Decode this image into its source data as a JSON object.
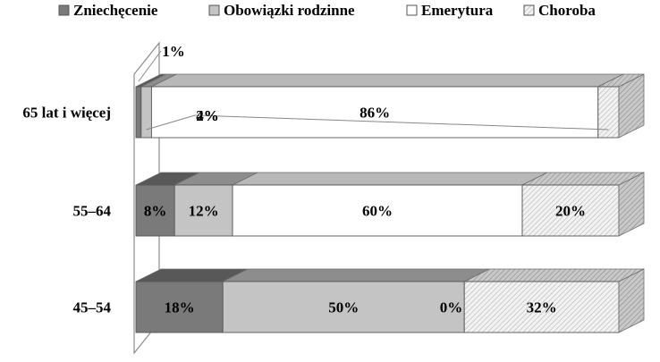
{
  "chart_data": {
    "type": "bar",
    "orientation": "horizontal",
    "stacked": "percent",
    "three_d": true,
    "legend_position": "top",
    "categories": [
      "65 lat i więcej",
      "55–64",
      "45–54"
    ],
    "series": [
      {
        "name": "Zniechęcenie",
        "values": [
          1,
          8,
          18
        ],
        "labels": [
          "1%",
          "8%",
          "18%"
        ],
        "color": "#7a7a7a",
        "pattern": "solid"
      },
      {
        "name": "Obowiązki rodzinne",
        "values": [
          2,
          12,
          50
        ],
        "labels": [
          "2%",
          "12%",
          "50%"
        ],
        "color": "#c4c4c4",
        "pattern": "solid"
      },
      {
        "name": "Emerytura",
        "values": [
          86,
          60,
          0
        ],
        "labels": [
          "86%",
          "60%",
          "0%"
        ],
        "color": "#ffffff",
        "pattern": "solid"
      },
      {
        "name": "Choroba",
        "values": [
          4,
          20,
          32
        ],
        "labels": [
          "4%",
          "20%",
          "32%"
        ],
        "color": "#e6e6e6",
        "pattern": "hatch"
      }
    ]
  }
}
